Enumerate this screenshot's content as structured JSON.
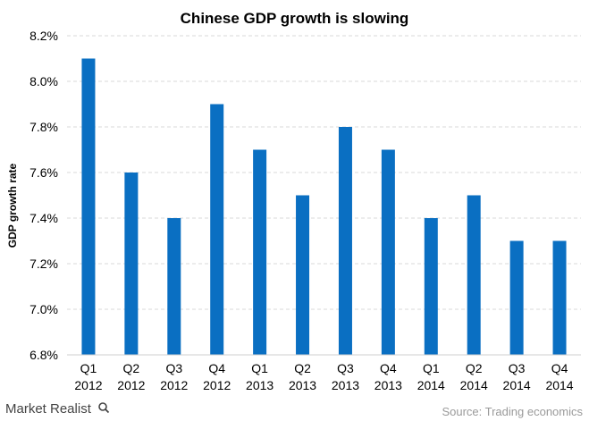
{
  "chart_data": {
    "type": "bar",
    "title": "Chinese GDP growth is slowing",
    "ylabel": "GDP growth rate",
    "xlabel": "",
    "ylim": [
      6.8,
      8.2
    ],
    "yticks": [
      "8.2%",
      "8.0%",
      "7.8%",
      "7.6%",
      "7.4%",
      "7.2%",
      "7.0%",
      "6.8%"
    ],
    "ytick_values": [
      8.2,
      8.0,
      7.8,
      7.6,
      7.4,
      7.2,
      7.0,
      6.8
    ],
    "grid": true,
    "categories": [
      [
        "Q1",
        "2012"
      ],
      [
        "Q2",
        "2012"
      ],
      [
        "Q3",
        "2012"
      ],
      [
        "Q4",
        "2012"
      ],
      [
        "Q1",
        "2013"
      ],
      [
        "Q2",
        "2013"
      ],
      [
        "Q3",
        "2013"
      ],
      [
        "Q4",
        "2013"
      ],
      [
        "Q1",
        "2014"
      ],
      [
        "Q2",
        "2014"
      ],
      [
        "Q3",
        "2014"
      ],
      [
        "Q4",
        "2014"
      ]
    ],
    "values": [
      8.1,
      7.6,
      7.4,
      7.9,
      7.7,
      7.5,
      7.8,
      7.7,
      7.4,
      7.5,
      7.3,
      7.3
    ],
    "bar_color": "#0a6fc2",
    "grid_color": "#d9d9d9"
  },
  "branding": {
    "name": "Market Realist",
    "icon": "magnifier-icon"
  },
  "source": "Source: Trading economics"
}
